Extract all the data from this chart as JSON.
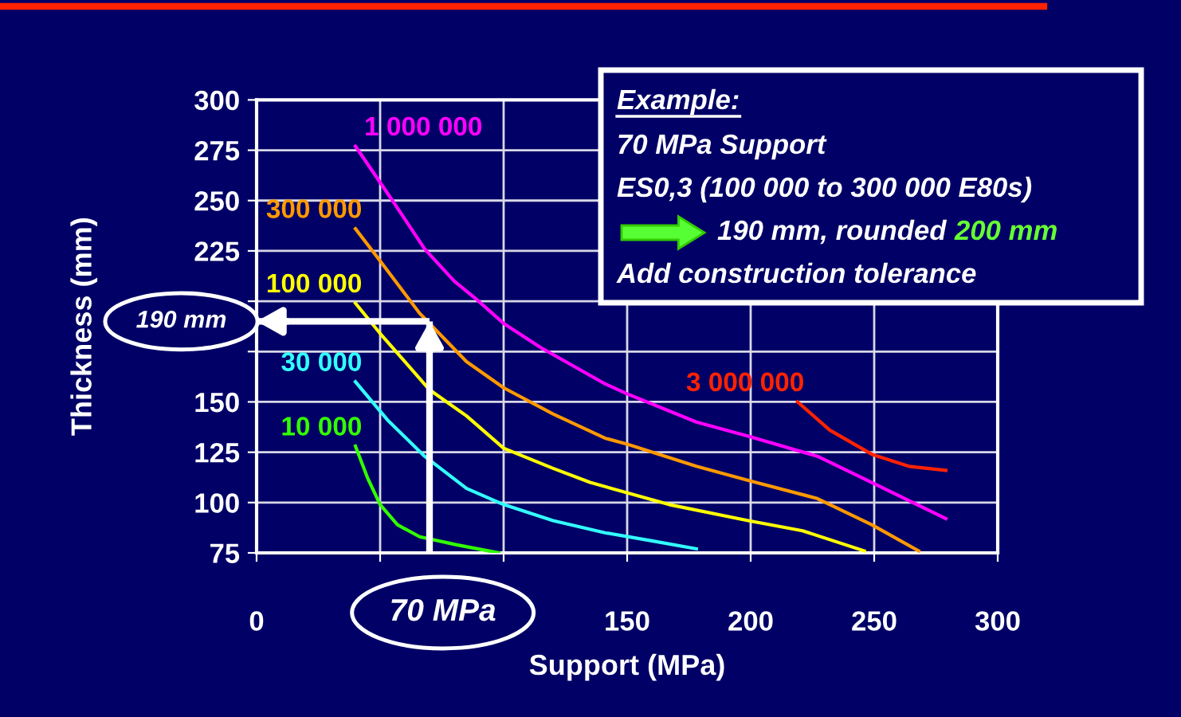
{
  "chart_data": {
    "type": "line",
    "xlabel": "Support (MPa)",
    "ylabel": "Thickness (mm)",
    "xlim": [
      0,
      300
    ],
    "ylim": [
      75,
      300
    ],
    "xticks": [
      0,
      {
        "value": 50,
        "label": null
      },
      {
        "value": 100,
        "label": null
      },
      150,
      200,
      250,
      300
    ],
    "yticks": [
      75,
      100,
      125,
      150,
      {
        "value": 175,
        "label": null
      },
      {
        "value": 200,
        "label": null
      },
      225,
      250,
      275,
      300
    ],
    "grid": true,
    "legend": false,
    "marker": "none",
    "line_style": "solid",
    "series": [
      {
        "name": "1 000 000",
        "color": "#ff00ff",
        "x": [
          40,
          55,
          68,
          80,
          88,
          100,
          115,
          141,
          150,
          178,
          199,
          227,
          249,
          279
        ],
        "values": [
          277,
          250,
          226,
          210,
          202,
          189,
          177,
          159,
          154,
          140,
          133,
          123,
          110,
          92
        ]
      },
      {
        "name": "300 000",
        "color": "#ff9900",
        "x": [
          40,
          50,
          66,
          85,
          100,
          120,
          141,
          150,
          178,
          199,
          227,
          249,
          268
        ],
        "values": [
          236,
          220,
          194,
          170,
          157,
          144,
          132,
          129,
          118,
          111,
          102,
          89,
          76
        ]
      },
      {
        "name": "100 000",
        "color": "#ffff00",
        "x": [
          40,
          50,
          60,
          70,
          85,
          100,
          120,
          135,
          167,
          199,
          221,
          246
        ],
        "values": [
          199,
          184,
          170,
          156,
          143,
          127,
          117,
          110,
          99,
          91,
          86,
          76
        ]
      },
      {
        "name": "30 000",
        "color": "#33ffff",
        "x": [
          40,
          53,
          68,
          85,
          100,
          120,
          141,
          160,
          178
        ],
        "values": [
          160,
          141,
          123,
          107,
          99,
          91,
          85,
          81,
          77
        ]
      },
      {
        "name": "10 000",
        "color": "#33ff00",
        "x": [
          40,
          45,
          50,
          57,
          66,
          81,
          98
        ],
        "values": [
          128,
          112,
          99,
          89,
          83,
          79,
          75
        ]
      },
      {
        "name": "3 000 000",
        "color": "#ff2200",
        "x": [
          219,
          232,
          249,
          264,
          279
        ],
        "values": [
          150,
          136,
          124,
          118,
          116
        ]
      }
    ],
    "ref_lines": [
      {
        "axis": "x",
        "value": 70,
        "label": "70 MPa",
        "color": "#ffffff"
      },
      {
        "axis": "y",
        "value": 190,
        "label": "190 mm",
        "color": "#ffffff"
      }
    ],
    "annotations": [
      "Example:",
      "70 MPa Support",
      "ES0,3 (100 000 to 300 000 E80s)",
      "190 mm, rounded",
      "200 mm",
      "Add construction tolerance"
    ]
  }
}
